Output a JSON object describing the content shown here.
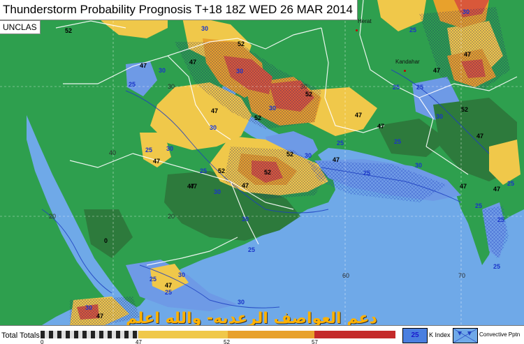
{
  "title": "Thunderstorm Probability Prognosis T+18 18Z WED 26 MAR 2014",
  "classification": "UNCLAS",
  "colors": {
    "sea": "#6fa9e8",
    "land_low": "#2e9f4e",
    "level_25": "#6e9ae6",
    "level_30": "#2d7a3c",
    "level_47": "#f0c84a",
    "level_52": "#e8a12c",
    "level_57": "#d9583a",
    "level_top": "#c42a2a"
  },
  "coords": {
    "lat_30_w": "30",
    "lat_30_e": "30",
    "lat_20_w": "20",
    "lat_20_e": "20",
    "lon_40": "40",
    "lon_60": "60",
    "lon_70": "70"
  },
  "cities": {
    "herat": "Herat",
    "kandahar": "Kandahar"
  },
  "contour_labels": [
    "52",
    "30",
    "47",
    "25",
    "30",
    "47",
    "52",
    "30",
    "47",
    "52",
    "30",
    "25",
    "47",
    "30",
    "52",
    "47",
    "30",
    "25",
    "47",
    "52",
    "25",
    "30",
    "52",
    "47",
    "25",
    "47",
    "25",
    "30",
    "30",
    "47",
    "52",
    "25",
    "47",
    "30",
    "0",
    "25",
    "30",
    "25",
    "47",
    "30",
    "25",
    "47",
    "25",
    "30",
    "47",
    "52",
    "25",
    "47",
    "47",
    "47",
    "30",
    "25",
    "47",
    "25",
    "25",
    "30",
    "25"
  ],
  "watermark": "دعم العواصف الرعديه- والله اعلم",
  "legend": {
    "title": "Total Totals",
    "ticks": [
      "0",
      "47",
      "52",
      "57"
    ],
    "k_index_value": "25",
    "k_index_label": "K Index",
    "convective_label": "Convective Pptn"
  }
}
